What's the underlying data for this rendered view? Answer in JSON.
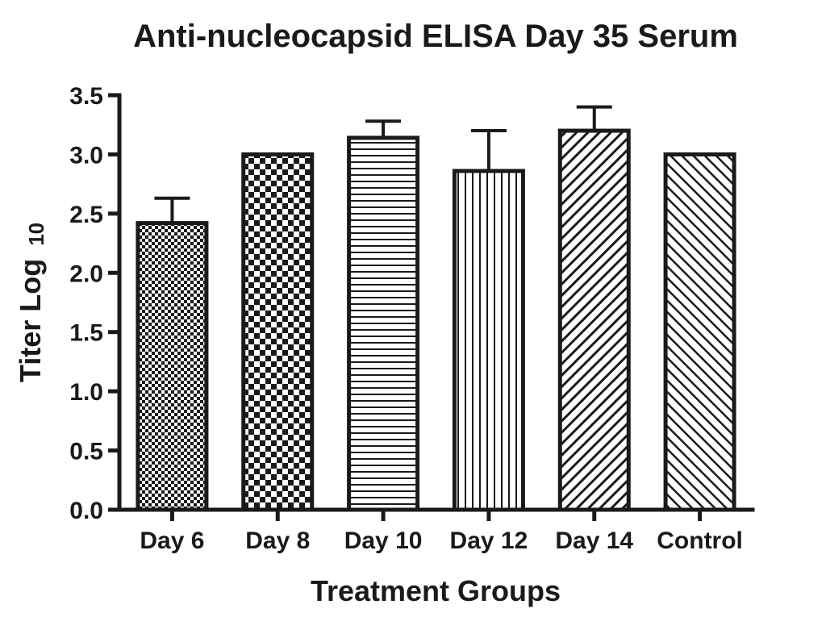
{
  "chart_data": {
    "type": "bar",
    "title": "Anti-nucleocapsid ELISA Day 35 Serum",
    "xlabel": "Treatment Groups",
    "ylabel_main": "Titer Log",
    "ylabel_sub": "10",
    "ylim": [
      0,
      3.5
    ],
    "yticks": [
      "0.0",
      "0.5",
      "1.0",
      "1.5",
      "2.0",
      "2.5",
      "3.0",
      "3.5"
    ],
    "ytick_values": [
      0,
      0.5,
      1.0,
      1.5,
      2.0,
      2.5,
      3.0,
      3.5
    ],
    "categories": [
      "Day 6",
      "Day 8",
      "Day 10",
      "Day 12",
      "Day 14",
      "Control"
    ],
    "values": [
      2.42,
      3.0,
      3.14,
      2.86,
      3.2,
      3.0
    ],
    "errors": [
      0.21,
      0,
      0.14,
      0.34,
      0.2,
      0
    ],
    "patterns": [
      "fine-checker",
      "checker",
      "horizontal-lines",
      "vertical-lines",
      "diagonal-up",
      "diagonal-down"
    ],
    "grid": false,
    "legend": "none"
  }
}
